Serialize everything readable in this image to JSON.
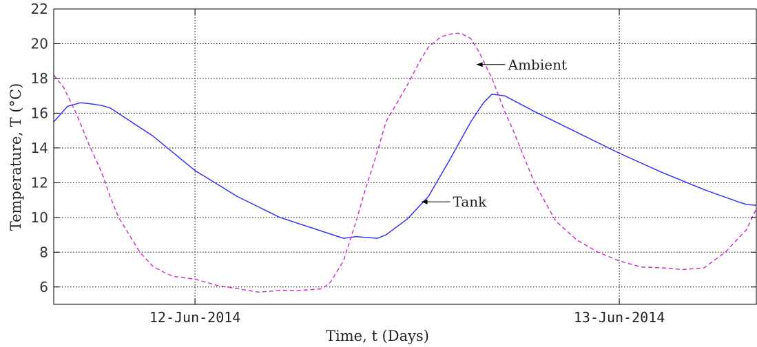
{
  "chart_data": {
    "type": "line",
    "xlabel": "Time, t (Days)",
    "ylabel": "Temperature, T (°C)",
    "x_ticks": [
      {
        "label": "12-Jun-2014",
        "value": 0.0
      },
      {
        "label": "13-Jun-2014",
        "value": 1.0
      }
    ],
    "xlim": [
      -0.333,
      1.323
    ],
    "ylim": [
      5,
      22
    ],
    "y_ticks": [
      6,
      8,
      10,
      12,
      14,
      16,
      18,
      20,
      22
    ],
    "grid": true,
    "annotations": [
      {
        "text": "Ambient",
        "series": "Ambient",
        "x": 0.66,
        "y": 18.8
      },
      {
        "text": "Tank",
        "series": "Tank",
        "x": 0.53,
        "y": 10.9
      }
    ],
    "series": [
      {
        "name": "Tank",
        "color": "#3333ff",
        "style": "solid",
        "x": [
          -0.333,
          -0.3,
          -0.27,
          -0.25,
          -0.22,
          -0.2,
          -0.15,
          -0.1,
          0.0,
          0.1,
          0.2,
          0.3,
          0.35,
          0.38,
          0.4,
          0.43,
          0.45,
          0.5,
          0.55,
          0.6,
          0.65,
          0.68,
          0.7,
          0.73,
          0.8,
          0.9,
          1.0,
          1.1,
          1.2,
          1.28,
          1.3,
          1.323
        ],
        "y": [
          15.5,
          16.4,
          16.6,
          16.55,
          16.45,
          16.3,
          15.5,
          14.7,
          12.7,
          11.2,
          10.0,
          9.2,
          8.8,
          8.9,
          8.85,
          8.8,
          9.0,
          9.9,
          11.2,
          13.3,
          15.5,
          16.6,
          17.1,
          17.0,
          16.1,
          14.9,
          13.7,
          12.6,
          11.6,
          10.9,
          10.75,
          10.7
        ]
      },
      {
        "name": "Ambient",
        "color": "#cc33cc",
        "style": "dashed",
        "x": [
          -0.333,
          -0.31,
          -0.28,
          -0.25,
          -0.22,
          -0.2,
          -0.18,
          -0.15,
          -0.13,
          -0.1,
          -0.07,
          -0.05,
          0.0,
          0.05,
          0.1,
          0.15,
          0.2,
          0.25,
          0.3,
          0.32,
          0.35,
          0.38,
          0.4,
          0.43,
          0.45,
          0.5,
          0.53,
          0.55,
          0.58,
          0.6,
          0.62,
          0.63,
          0.65,
          0.67,
          0.7,
          0.73,
          0.75,
          0.8,
          0.85,
          0.9,
          0.95,
          1.0,
          1.05,
          1.1,
          1.15,
          1.2,
          1.25,
          1.3,
          1.323
        ],
        "y": [
          18.2,
          17.5,
          16.0,
          14.2,
          12.6,
          11.2,
          10.0,
          8.8,
          8.0,
          7.2,
          6.8,
          6.6,
          6.45,
          6.1,
          5.9,
          5.7,
          5.8,
          5.8,
          5.9,
          6.3,
          7.5,
          9.8,
          11.5,
          13.8,
          15.5,
          17.6,
          19.0,
          19.8,
          20.4,
          20.55,
          20.6,
          20.55,
          20.3,
          19.5,
          18.0,
          16.1,
          15.0,
          12.0,
          9.8,
          8.7,
          8.0,
          7.5,
          7.15,
          7.1,
          7.0,
          7.1,
          8.0,
          9.3,
          10.5
        ]
      }
    ]
  }
}
